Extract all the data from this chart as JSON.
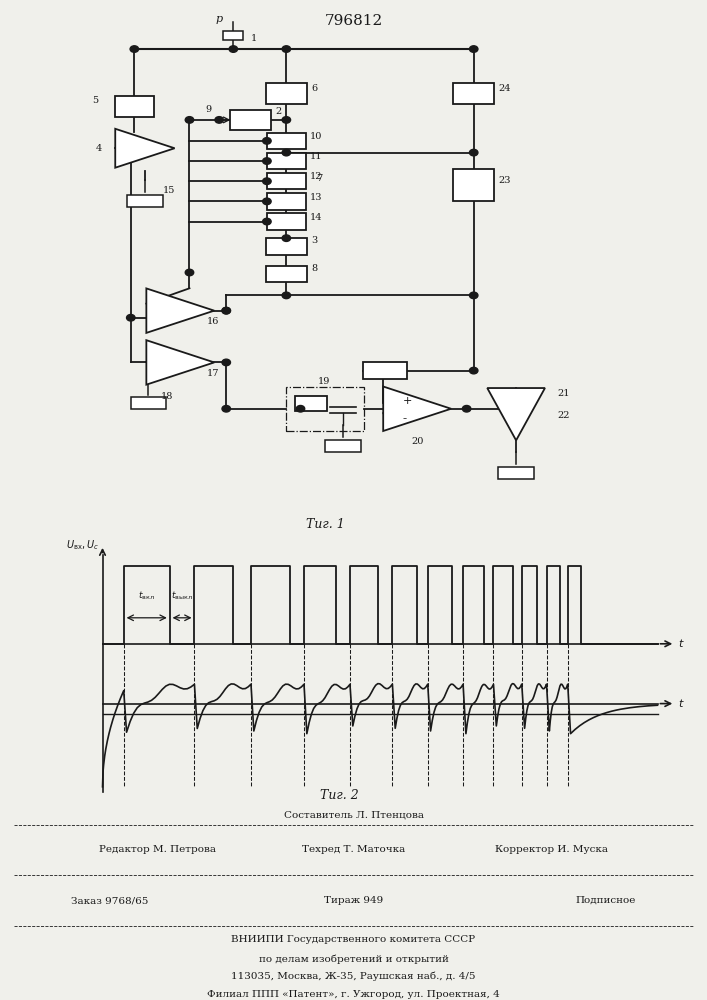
{
  "title_text": "796812",
  "fig1_label": "Τиг. 1",
  "fig2_label": "Τиг. 2",
  "bg_color": "#f0f0eb",
  "line_color": "#1a1a1a",
  "label_vkl": "t_{вкл}",
  "label_vikl": "t_{выкл}",
  "y_label": "U_{вх}, U_c",
  "footer_row1_center": "Составитель Л. Птенцова",
  "footer_row2_left": "Редактор М. Петрова",
  "footer_row2_center": "Техред Т. Маточка",
  "footer_row2_right": "Корректор И. Муска",
  "footer_row3_left": "Заказ 9768/65",
  "footer_row3_center": "Тираж 949",
  "footer_row3_right": "Подписное",
  "footer_row4": "ВНИИПИ Государственного комитета СССР",
  "footer_row5": "по делам изобретений и открытий",
  "footer_row6": "113035, Москва, Ж-35, Раушская наб., д. 4/5",
  "footer_row7": "Филиал ППП «Патент», г. Ужгород, ул. Проектная, 4"
}
